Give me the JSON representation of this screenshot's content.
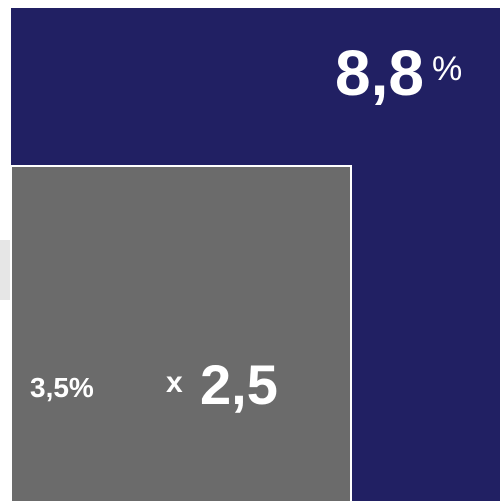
{
  "big": {
    "value": "8,8",
    "unit": "%"
  },
  "small": {
    "value": "3,5%"
  },
  "ratio": {
    "prefix": "x",
    "value": "2,5"
  }
}
